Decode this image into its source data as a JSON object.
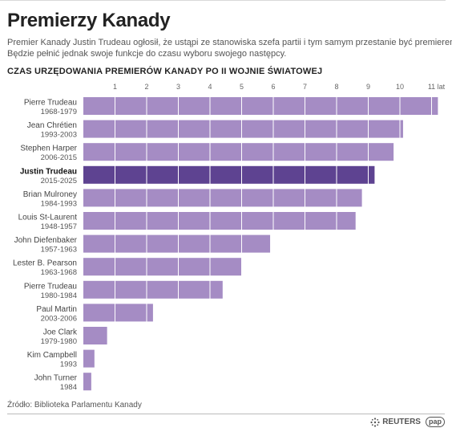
{
  "title": "Premierzy Kanady",
  "subtitle": [
    "Premier Kanady Justin Trudeau ogłosił, że ustąpi ze stanowiska szefa partii i tym samym przestanie być premierem.",
    "Będzie pełnić jednak swoje funkcje do czasu wyboru swojego następcy."
  ],
  "source": "Źródło: Biblioteka Parlamentu Kanady",
  "logos": {
    "reuters": "REUTERS",
    "pap": "pap",
    "reuters_icon": "reuters-dots-icon"
  },
  "colors": {
    "bar": "#a58cc4",
    "highlight": "#5e4391",
    "grid": "#ffffff",
    "text": "#333333"
  },
  "chart_data": {
    "type": "bar",
    "orientation": "horizontal",
    "title": "CZAS URZĘDOWANIA PREMIERÓW KANADY PO II WOJNIE ŚWIATOWEJ",
    "x_ticks": [
      "1",
      "2",
      "3",
      "4",
      "5",
      "6",
      "7",
      "8",
      "9",
      "10",
      "11 lat"
    ],
    "xlim": [
      0,
      11.5
    ],
    "grid": true,
    "bars": [
      {
        "name": "Pierre Trudeau",
        "years": "1968-1979",
        "value": 11.2,
        "highlight": false
      },
      {
        "name": "Jean Chrétien",
        "years": "1993-2003",
        "value": 10.1,
        "highlight": false
      },
      {
        "name": "Stephen Harper",
        "years": "2006-2015",
        "value": 9.8,
        "highlight": false
      },
      {
        "name": "Justin Trudeau",
        "years": "2015-2025",
        "value": 9.2,
        "highlight": true
      },
      {
        "name": "Brian Mulroney",
        "years": "1984-1993",
        "value": 8.8,
        "highlight": false
      },
      {
        "name": "Louis St-Laurent",
        "years": "1948-1957",
        "value": 8.6,
        "highlight": false
      },
      {
        "name": "John Diefenbaker",
        "years": "1957-1963",
        "value": 5.9,
        "highlight": false
      },
      {
        "name": "Lester B. Pearson",
        "years": "1963-1968",
        "value": 5.0,
        "highlight": false
      },
      {
        "name": "Pierre Trudeau",
        "years": "1980-1984",
        "value": 4.4,
        "highlight": false
      },
      {
        "name": "Paul Martin",
        "years": "2003-2006",
        "value": 2.2,
        "highlight": false
      },
      {
        "name": "Joe Clark",
        "years": "1979-1980",
        "value": 0.75,
        "highlight": false
      },
      {
        "name": "Kim Campbell",
        "years": "1993",
        "value": 0.35,
        "highlight": false
      },
      {
        "name": "John Turner",
        "years": "1984",
        "value": 0.25,
        "highlight": false
      }
    ]
  }
}
